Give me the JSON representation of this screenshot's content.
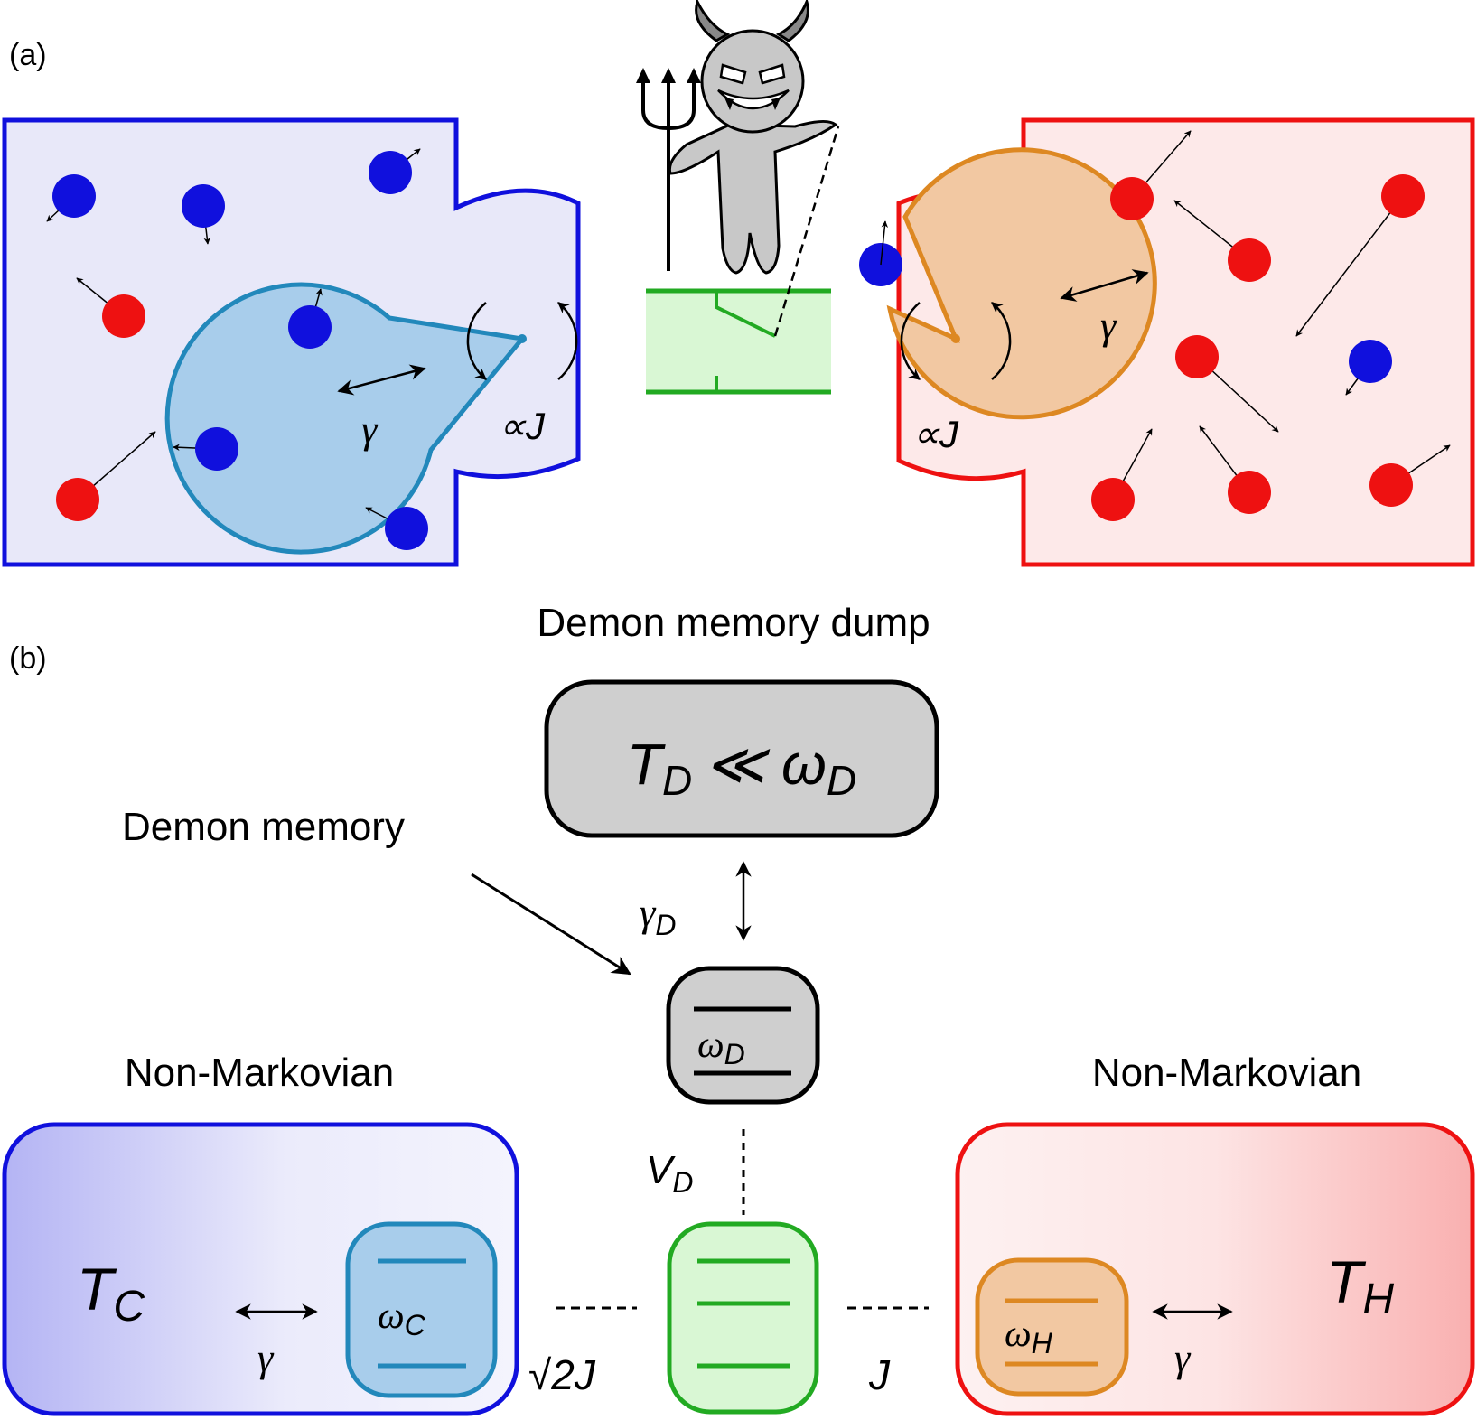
{
  "panel_a": {
    "label": "(a)",
    "left_gamma": "γ",
    "right_gamma": "γ",
    "left_coupling": "∝J",
    "right_coupling": "∝J"
  },
  "panel_b": {
    "label": "(b)",
    "dump_title": "Demon memory dump",
    "dump_text": "T",
    "dump_sub": "D",
    "dump_relation": "≪ ω",
    "dump_sub2": "D",
    "memory_label": "Demon memory",
    "gamma_d": "γ",
    "gamma_d_sub": "D",
    "omega_d": "ω",
    "omega_d_sub": "D",
    "v_d": "V",
    "v_d_sub": "D",
    "left_title": "Non-Markovian",
    "right_title": "Non-Markovian",
    "t_c": "T",
    "t_c_sub": "C",
    "t_h": "T",
    "t_h_sub": "H",
    "omega_c": "ω",
    "omega_c_sub": "C",
    "omega_h": "ω",
    "omega_h_sub": "H",
    "left_gamma": "γ",
    "right_gamma": "γ",
    "sqrt2j": "√2J",
    "j": "J"
  },
  "colors": {
    "cold": "#1010dd",
    "hot": "#ee1111",
    "cold_fill": "#e6e6fa",
    "hot_fill": "#fde6e6",
    "qubit_c": "#2288bb",
    "qubit_h": "#dd8822",
    "demon": "#c8c8c8",
    "middle": "#22aa22"
  },
  "icons": [
    "devil-icon",
    "trident-icon"
  ]
}
